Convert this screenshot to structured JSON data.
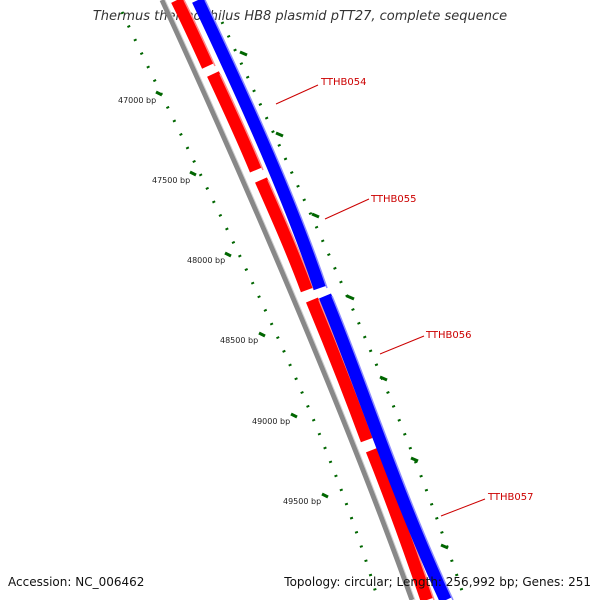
{
  "title": "Thermus thermophilus HB8 plasmid pTT27, complete sequence",
  "footer": {
    "accession": "Accession: NC_006462",
    "topology": "Topology: circular; Length: 256,992 bp; Genes: 251"
  },
  "ruler_labels": [
    "47000 bp",
    "47500 bp",
    "48000 bp",
    "48500 bp",
    "49000 bp",
    "49500 bp"
  ],
  "genes": [
    "TTHB054",
    "TTHB055",
    "TTHB056",
    "TTHB057"
  ],
  "colors": {
    "reverse_strand": "#ff0000",
    "forward_strand": "#0000ff",
    "backbone": "#888888",
    "ticks": "#006600",
    "gene_label": "#cc0000"
  }
}
